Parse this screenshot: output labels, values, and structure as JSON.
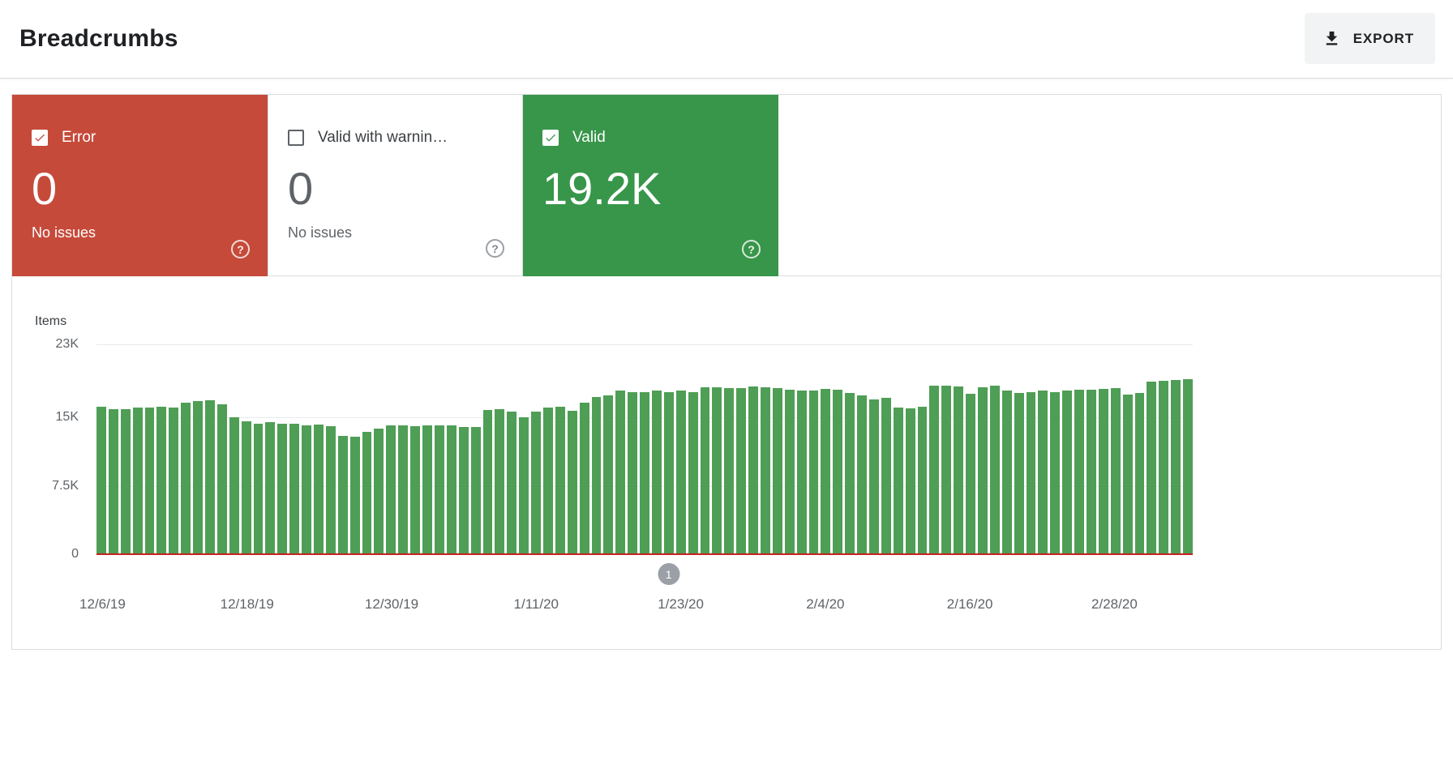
{
  "header": {
    "title": "Breadcrumbs",
    "export_label": "EXPORT"
  },
  "icons": {
    "help_glyph": "?"
  },
  "cards": [
    {
      "label": "Error",
      "value": "0",
      "sub": "No issues",
      "checked": true
    },
    {
      "label": "Valid with warnin…",
      "value": "0",
      "sub": "No issues",
      "checked": false
    },
    {
      "label": "Valid",
      "value": "19.2K",
      "sub": "",
      "checked": true
    }
  ],
  "colors": {
    "error": "#c64a3a",
    "valid": "#38964a",
    "bar": "#4f9e55",
    "error_line": "#c5221f",
    "marker": "#9aa0a6"
  },
  "chart_data": {
    "type": "bar",
    "title": "",
    "xlabel": "",
    "ylabel": "Items",
    "series_name": "Valid items",
    "grid": true,
    "legend": false,
    "ylim": [
      0,
      23000
    ],
    "yticks": [
      {
        "label": "23K",
        "value": 23000
      },
      {
        "label": "15K",
        "value": 15000
      },
      {
        "label": "7.5K",
        "value": 7500
      },
      {
        "label": "0",
        "value": 0
      }
    ],
    "x_tick_labels": [
      "12/6/19",
      "12/18/19",
      "12/30/19",
      "1/11/20",
      "1/23/20",
      "2/4/20",
      "2/16/20",
      "2/28/20"
    ],
    "x_tick_every": 12,
    "values": [
      16200,
      15900,
      15900,
      16100,
      16100,
      16200,
      16100,
      16600,
      16800,
      16900,
      16400,
      15000,
      14600,
      14300,
      14500,
      14300,
      14300,
      14100,
      14200,
      14000,
      13000,
      12900,
      13400,
      13800,
      14100,
      14100,
      14000,
      14100,
      14100,
      14100,
      13900,
      13900,
      15800,
      15900,
      15600,
      15000,
      15600,
      16100,
      16200,
      15700,
      16600,
      17200,
      17400,
      17900,
      17800,
      17800,
      17900,
      17800,
      17900,
      17800,
      18300,
      18300,
      18200,
      18200,
      18400,
      18300,
      18200,
      18000,
      17900,
      17900,
      18100,
      18000,
      17700,
      17400,
      17000,
      17100,
      16100,
      16000,
      16200,
      18500,
      18500,
      18400,
      17600,
      18300,
      18500,
      17900,
      17700,
      17800,
      17900,
      17800,
      17900,
      18000,
      18000,
      18100,
      18200,
      17500,
      17700,
      18900,
      19000,
      19100,
      19200
    ],
    "marker": {
      "label": "1",
      "index": 47
    }
  }
}
